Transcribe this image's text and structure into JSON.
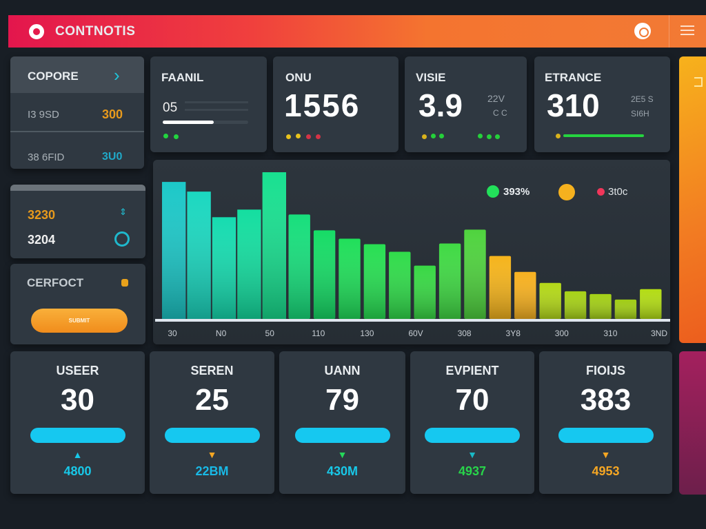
{
  "header": {
    "title": "CONTNOTIS"
  },
  "side_top": {
    "title": "COPORE",
    "rows": [
      {
        "label": "I3 9SD",
        "value": "300"
      },
      {
        "label": "38 6FID",
        "value": "3U0"
      }
    ]
  },
  "stats": [
    {
      "title": "FAANIL",
      "value": "05",
      "progress": 0.6
    },
    {
      "title": "ONU",
      "value": "1556"
    },
    {
      "title": "VISIE",
      "value": "3.9",
      "note1": "22V",
      "note2": "C C"
    },
    {
      "title": "ETRANCE",
      "value": "310",
      "note1": "2E5 S",
      "note2": "SI6H",
      "progress": 0.9
    }
  ],
  "side_mid": {
    "value1": "3230",
    "value2": "3204"
  },
  "side_bottom": {
    "title": "CERFOCT",
    "button": "SUBMIT"
  },
  "chart_data": {
    "type": "bar",
    "title": "",
    "xlabel": "",
    "ylabel": "",
    "ylim": [
      0,
      220
    ],
    "values": [
      198,
      184,
      147,
      158,
      212,
      151,
      128,
      116,
      108,
      97,
      77,
      109,
      129,
      91,
      68,
      52,
      40,
      36,
      28,
      43
    ],
    "x_tick_labels": [
      "30",
      "N0",
      "50",
      "110",
      "130",
      "60V",
      "308",
      "3Y8",
      "300",
      "310",
      "3ND"
    ],
    "legend": [
      {
        "label": "393%",
        "color": "#22e05a"
      },
      {
        "label": "",
        "color": "#f5b11e"
      },
      {
        "label": "3t0c",
        "color": "#f0365a"
      }
    ],
    "grid": false
  },
  "bottom": [
    {
      "label": "USEER",
      "value": "30",
      "sub": "4800",
      "color": "#18c8e8",
      "arrow": "▲"
    },
    {
      "label": "SEREN",
      "value": "25",
      "sub": "22BM",
      "color": "#19b9e6",
      "arrow": "▼",
      "arrow_color": "#f5a623"
    },
    {
      "label": "UANN",
      "value": "79",
      "sub": "430M",
      "color": "#18c8e8",
      "arrow": "▼",
      "arrow_color": "#25d85a"
    },
    {
      "label": "EVPIENT",
      "value": "70",
      "sub": "4937",
      "color": "#28d44a",
      "arrow": "▼",
      "arrow_color": "#19b9c6"
    },
    {
      "label": "FIOIJS",
      "value": "383",
      "sub": "4953",
      "color": "#f5a623",
      "arrow": "▼",
      "arrow_color": "#f5a623"
    }
  ]
}
